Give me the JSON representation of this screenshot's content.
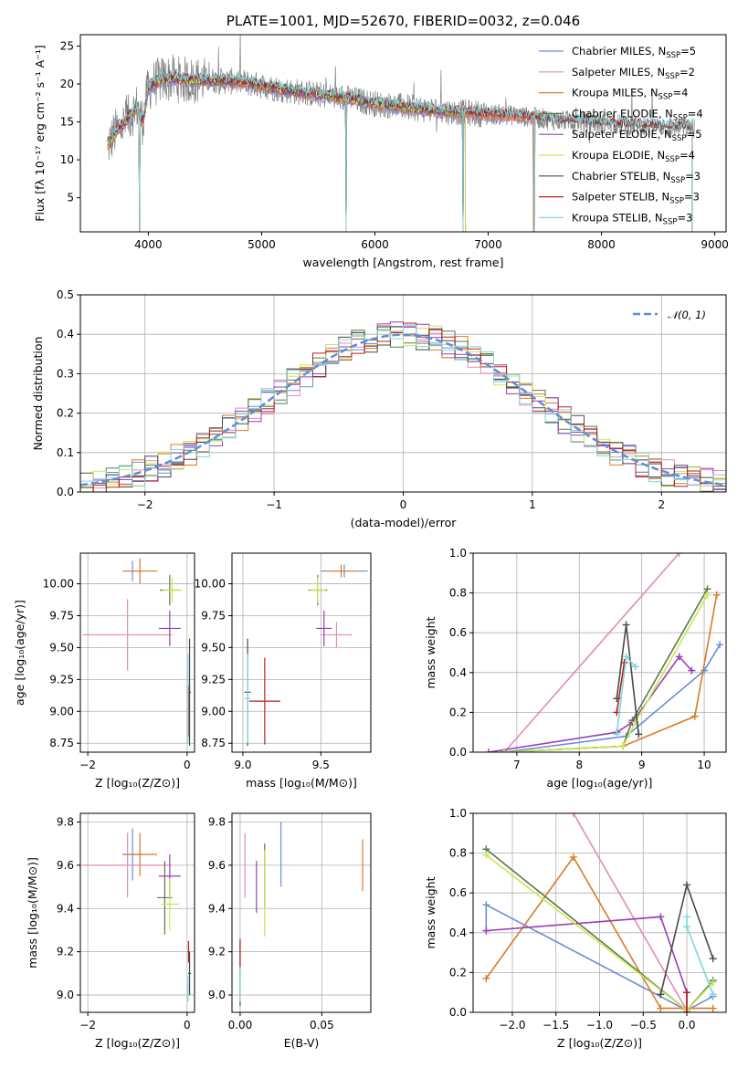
{
  "figure_title": "PLATE=1001, MJD=52670, FIBERID=0032, z=0.046",
  "colors": {
    "Chabrier MILES": "#6b8edb",
    "Salpeter MILES": "#e38abd",
    "Kroupa MILES": "#d97b27",
    "Chabrier ELODIE": "#5a7a50",
    "Salpeter ELODIE": "#9a3fb6",
    "Kroupa ELODIE": "#c8e84f",
    "Chabrier STELIB": "#4a4a4a",
    "Salpeter STELIB": "#b82020",
    "Kroupa STELIB": "#7fd6dc"
  },
  "chart_data": [
    {
      "id": "spectrum",
      "type": "line",
      "title": "PLATE=1001, MJD=52670, FIBERID=0032, z=0.046",
      "xlabel": "wavelength [Angstrom, rest frame]",
      "ylabel": "Flux [fλ 10⁻¹⁷ erg cm⁻² s⁻¹ A⁻¹]",
      "xlim": [
        3400,
        9100
      ],
      "ylim": [
        0.5,
        26.5
      ],
      "xticks": [
        "4000",
        "5000",
        "6000",
        "7000",
        "8000",
        "9000"
      ],
      "yticks": [
        "5",
        "10",
        "15",
        "20",
        "25"
      ],
      "grid": false,
      "legend_position": "top-right",
      "legend": [
        {
          "label": "Chabrier MILES, N",
          "sub": "SSP",
          "suffix": "=5"
        },
        {
          "label": "Salpeter MILES, N",
          "sub": "SSP",
          "suffix": "=2"
        },
        {
          "label": "Kroupa MILES, N",
          "sub": "SSP",
          "suffix": "=4"
        },
        {
          "label": "Chabrier ELODIE, N",
          "sub": "SSP",
          "suffix": "=4"
        },
        {
          "label": "Salpeter ELODIE, N",
          "sub": "SSP",
          "suffix": "=5"
        },
        {
          "label": "Kroupa ELODIE, N",
          "sub": "SSP",
          "suffix": "=4"
        },
        {
          "label": "Chabrier STELIB, N",
          "sub": "SSP",
          "suffix": "=3"
        },
        {
          "label": "Salpeter STELIB, N",
          "sub": "SSP",
          "suffix": "=3"
        },
        {
          "label": "Kroupa STELIB, N",
          "sub": "SSP",
          "suffix": "=3"
        }
      ],
      "model_continuum": {
        "x": [
          3650,
          3700,
          3800,
          3900,
          3950,
          4000,
          4100,
          4200,
          4300,
          4500,
          4800,
          5000,
          5200,
          5500,
          5800,
          6000,
          6300,
          6600,
          6800,
          7000,
          7200,
          7400,
          7600,
          7800,
          8000,
          8200,
          8500,
          8800
        ],
        "y": [
          12,
          13.5,
          15,
          17,
          15,
          19.5,
          20.5,
          20.8,
          20.5,
          20.5,
          20.3,
          19.8,
          19.2,
          18.6,
          18,
          17.4,
          16.9,
          16.4,
          16.2,
          16,
          15.9,
          15.6,
          15.2,
          15.1,
          14.8,
          14.6,
          14.4,
          14.2
        ]
      },
      "model_coverage_end": {
        "Chabrier MILES": 7400,
        "Salpeter MILES": 7400,
        "Kroupa MILES": 7400,
        "Chabrier ELODIE": 6800,
        "Salpeter ELODIE": 6800,
        "Kroupa ELODIE": 6800,
        "Chabrier STELIB": 8800,
        "Salpeter STELIB": 8800,
        "Kroupa STELIB": 8800
      },
      "sharp_drops_x": [
        3920,
        5745,
        6780,
        7410
      ]
    },
    {
      "id": "residuals",
      "type": "histogram",
      "xlabel": "(data-model)/error",
      "ylabel": "Normed distribution",
      "xlim": [
        -2.5,
        2.5
      ],
      "ylim": [
        0,
        0.5
      ],
      "xticks": [
        "−2",
        "−1",
        "0",
        "1",
        "2"
      ],
      "yticks": [
        "0.0",
        "0.1",
        "0.2",
        "0.3",
        "0.4",
        "0.5"
      ],
      "grid": true,
      "legend_position": "top-right",
      "legend": [
        "𝒩(0, 1)"
      ],
      "bin_width": 0.1
    },
    {
      "id": "age_vs_Z",
      "type": "errorbar",
      "xlabel": "Z [log₁₀(Z/Z⊙)]",
      "ylabel": "age  [log₁₀(age/yr)]",
      "xlim": [
        -2.15,
        0.15
      ],
      "ylim": [
        8.68,
        10.24
      ],
      "xticks": [
        "−2",
        "0"
      ],
      "yticks": [
        "8.75",
        "9.00",
        "9.25",
        "9.50",
        "9.75",
        "10.00"
      ],
      "grid": true,
      "points": [
        {
          "model": "Chabrier MILES",
          "x": -1.1,
          "y": 10.1,
          "xerr": 0.2,
          "yerr": 0.08
        },
        {
          "model": "Salpeter MILES",
          "x": -1.2,
          "y": 9.6,
          "xerr": 0.9,
          "yerr": 0.28
        },
        {
          "model": "Kroupa MILES",
          "x": -0.95,
          "y": 10.1,
          "xerr": 0.35,
          "yerr": 0.1
        },
        {
          "model": "Chabrier ELODIE",
          "x": -0.35,
          "y": 9.95,
          "xerr": 0.2,
          "yerr": 0.12
        },
        {
          "model": "Salpeter ELODIE",
          "x": -0.35,
          "y": 9.65,
          "xerr": 0.22,
          "yerr": 0.14
        },
        {
          "model": "Kroupa ELODIE",
          "x": -0.3,
          "y": 9.95,
          "xerr": 0.2,
          "yerr": 0.1
        },
        {
          "model": "Chabrier STELIB",
          "x": 0.05,
          "y": 9.15,
          "xerr": 0.03,
          "yerr": 0.42
        },
        {
          "model": "Salpeter STELIB",
          "x": 0.03,
          "y": 9.0,
          "xerr": 0.02,
          "yerr": 0.2
        },
        {
          "model": "Kroupa STELIB",
          "x": 0.02,
          "y": 9.1,
          "xerr": 0.02,
          "yerr": 0.35
        }
      ]
    },
    {
      "id": "age_vs_mass",
      "type": "errorbar",
      "xlabel": "mass [log₁₀(M/M⊙)]",
      "ylabel": "",
      "xlim": [
        8.93,
        9.82
      ],
      "ylim": [
        8.68,
        10.24
      ],
      "xticks": [
        "9.0",
        "9.5"
      ],
      "yticks": [
        "8.75",
        "9.00",
        "9.25",
        "9.50",
        "9.75",
        "10.00"
      ],
      "grid": true,
      "points": [
        {
          "model": "Chabrier MILES",
          "x": 9.65,
          "y": 10.1,
          "xerr": 0.15,
          "yerr": 0.05
        },
        {
          "model": "Salpeter MILES",
          "x": 9.6,
          "y": 9.6,
          "xerr": 0.1,
          "yerr": 0.1
        },
        {
          "model": "Kroupa MILES",
          "x": 9.63,
          "y": 10.1,
          "xerr": 0.1,
          "yerr": 0.05
        },
        {
          "model": "Chabrier ELODIE",
          "x": 9.48,
          "y": 9.95,
          "xerr": 0.06,
          "yerr": 0.12
        },
        {
          "model": "Salpeter ELODIE",
          "x": 9.52,
          "y": 9.65,
          "xerr": 0.05,
          "yerr": 0.14
        },
        {
          "model": "Kroupa ELODIE",
          "x": 9.48,
          "y": 9.95,
          "xerr": 0.05,
          "yerr": 0.1
        },
        {
          "model": "Chabrier STELIB",
          "x": 9.03,
          "y": 9.15,
          "xerr": 0.02,
          "yerr": 0.42
        },
        {
          "model": "Salpeter STELIB",
          "x": 9.14,
          "y": 9.08,
          "xerr": 0.1,
          "yerr": 0.34
        },
        {
          "model": "Kroupa STELIB",
          "x": 9.03,
          "y": 9.1,
          "xerr": 0.02,
          "yerr": 0.35
        }
      ]
    },
    {
      "id": "weight_vs_age",
      "type": "line",
      "xlabel": "age  [log₁₀(age/yr)]",
      "ylabel": "mass weight",
      "xlim": [
        6.3,
        10.35
      ],
      "ylim": [
        0,
        1
      ],
      "xticks": [
        "7",
        "8",
        "9",
        "10"
      ],
      "yticks": [
        "0.0",
        "0.2",
        "0.4",
        "0.6",
        "0.8",
        "1.0"
      ],
      "grid": true,
      "series": [
        {
          "name": "Chabrier MILES",
          "x": [
            6.8,
            8.75,
            10.0,
            10.25
          ],
          "y": [
            0.0,
            0.08,
            0.41,
            0.54
          ]
        },
        {
          "name": "Salpeter MILES",
          "x": [
            6.8,
            9.6
          ],
          "y": [
            0.0,
            1.0
          ]
        },
        {
          "name": "Kroupa MILES",
          "x": [
            6.8,
            8.7,
            9.85,
            10.2
          ],
          "y": [
            0.0,
            0.03,
            0.18,
            0.79
          ]
        },
        {
          "name": "Chabrier ELODIE",
          "x": [
            6.8,
            8.7,
            8.85,
            10.05
          ],
          "y": [
            0.0,
            0.03,
            0.16,
            0.82
          ]
        },
        {
          "name": "Salpeter ELODIE",
          "x": [
            6.55,
            8.6,
            8.85,
            9.6,
            9.8
          ],
          "y": [
            0.0,
            0.1,
            0.15,
            0.48,
            0.41
          ]
        },
        {
          "name": "Kroupa ELODIE",
          "x": [
            6.8,
            8.7,
            8.9,
            10.05
          ],
          "y": [
            0.0,
            0.03,
            0.15,
            0.79
          ]
        },
        {
          "name": "Chabrier STELIB",
          "x": [
            8.6,
            8.75,
            8.95
          ],
          "y": [
            0.27,
            0.64,
            0.09
          ]
        },
        {
          "name": "Salpeter STELIB",
          "x": [
            8.6,
            8.72
          ],
          "y": [
            0.2,
            0.45
          ]
        },
        {
          "name": "Kroupa STELIB",
          "x": [
            8.6,
            8.75,
            8.9
          ],
          "y": [
            0.09,
            0.48,
            0.43
          ]
        }
      ]
    },
    {
      "id": "mass_vs_Z",
      "type": "errorbar",
      "xlabel": "Z [log₁₀(Z/Z⊙)]",
      "ylabel": "mass [log₁₀(M/M⊙)]",
      "xlim": [
        -2.15,
        0.15
      ],
      "ylim": [
        8.92,
        9.84
      ],
      "xticks": [
        "−2",
        "0"
      ],
      "yticks": [
        "9.0",
        "9.2",
        "9.4",
        "9.6",
        "9.8"
      ],
      "grid": true,
      "points": [
        {
          "model": "Chabrier MILES",
          "x": -1.1,
          "y": 9.65,
          "xerr": 0.2,
          "yerr": 0.12
        },
        {
          "model": "Salpeter MILES",
          "x": -1.2,
          "y": 9.6,
          "xerr": 0.9,
          "yerr": 0.15
        },
        {
          "model": "Kroupa MILES",
          "x": -0.95,
          "y": 9.65,
          "xerr": 0.35,
          "yerr": 0.1
        },
        {
          "model": "Chabrier ELODIE",
          "x": -0.45,
          "y": 9.45,
          "xerr": 0.15,
          "yerr": 0.17
        },
        {
          "model": "Salpeter ELODIE",
          "x": -0.35,
          "y": 9.55,
          "xerr": 0.22,
          "yerr": 0.1
        },
        {
          "model": "Kroupa ELODIE",
          "x": -0.35,
          "y": 9.42,
          "xerr": 0.18,
          "yerr": 0.12
        },
        {
          "model": "Chabrier STELIB",
          "x": 0.05,
          "y": 9.1,
          "xerr": 0.03,
          "yerr": 0.1
        },
        {
          "model": "Salpeter STELIB",
          "x": 0.03,
          "y": 9.2,
          "xerr": 0.02,
          "yerr": 0.05
        },
        {
          "model": "Kroupa STELIB",
          "x": 0.02,
          "y": 9.03,
          "xerr": 0.02,
          "yerr": 0.06
        }
      ]
    },
    {
      "id": "mass_vs_ebv",
      "type": "errorbar",
      "xlabel": "E(B-V)",
      "ylabel": "",
      "xlim": [
        -0.005,
        0.08
      ],
      "ylim": [
        8.92,
        9.84
      ],
      "xticks": [
        "0.00",
        "0.05"
      ],
      "yticks": [
        "9.0",
        "9.2",
        "9.4",
        "9.6",
        "9.8"
      ],
      "grid": true,
      "points": [
        {
          "model": "Chabrier MILES",
          "x": 0.025,
          "y": 9.65,
          "xerr": 0,
          "yerr": 0.15
        },
        {
          "model": "Salpeter MILES",
          "x": 0.003,
          "y": 9.6,
          "xerr": 0,
          "yerr": 0.15
        },
        {
          "model": "Kroupa MILES",
          "x": 0.075,
          "y": 9.6,
          "xerr": 0,
          "yerr": 0.12
        },
        {
          "model": "Chabrier ELODIE",
          "x": 0.015,
          "y": 9.55,
          "xerr": 0,
          "yerr": 0.15
        },
        {
          "model": "Salpeter ELODIE",
          "x": 0.01,
          "y": 9.5,
          "xerr": 0,
          "yerr": 0.12
        },
        {
          "model": "Kroupa ELODIE",
          "x": 0.015,
          "y": 9.47,
          "xerr": 0,
          "yerr": 0.2
        },
        {
          "model": "Chabrier STELIB",
          "x": 0.0,
          "y": 9.1,
          "xerr": 0,
          "yerr": 0.15
        },
        {
          "model": "Salpeter STELIB",
          "x": 0.0,
          "y": 9.18,
          "xerr": 0,
          "yerr": 0.08
        },
        {
          "model": "Kroupa STELIB",
          "x": 0.0,
          "y": 9.05,
          "xerr": 0,
          "yerr": 0.08
        }
      ]
    },
    {
      "id": "weight_vs_Z",
      "type": "line",
      "xlabel": "Z [log₁₀(Z/Z⊙)]",
      "ylabel": "mass weight",
      "xlim": [
        -2.45,
        0.45
      ],
      "ylim": [
        0,
        1
      ],
      "xticks": [
        "−2.0",
        "−1.5",
        "−1.0",
        "−0.5",
        "0.0"
      ],
      "yticks": [
        "0.0",
        "0.2",
        "0.4",
        "0.6",
        "0.8",
        "1.0"
      ],
      "grid": true,
      "series": [
        {
          "name": "Chabrier MILES",
          "x": [
            -2.3,
            -2.3,
            0.0,
            0.3
          ],
          "y": [
            0.41,
            0.54,
            0.01,
            0.08
          ]
        },
        {
          "name": "Salpeter MILES",
          "x": [
            -1.3,
            0.0
          ],
          "y": [
            1.0,
            0.01
          ]
        },
        {
          "name": "Kroupa MILES",
          "x": [
            -2.3,
            -1.3,
            -0.3,
            0.3
          ],
          "y": [
            0.17,
            0.78,
            0.02,
            0.02
          ]
        },
        {
          "name": "Chabrier ELODIE",
          "x": [
            -2.3,
            0.0,
            0.3
          ],
          "y": [
            0.82,
            0.01,
            0.16
          ]
        },
        {
          "name": "Salpeter ELODIE",
          "x": [
            -2.3,
            -0.3,
            0.0,
            0.0
          ],
          "y": [
            0.41,
            0.48,
            0.1,
            0.0
          ]
        },
        {
          "name": "Kroupa ELODIE",
          "x": [
            -2.3,
            0.0,
            0.3
          ],
          "y": [
            0.79,
            0.01,
            0.15
          ]
        },
        {
          "name": "Chabrier STELIB",
          "x": [
            -0.3,
            0.0,
            0.3
          ],
          "y": [
            0.09,
            0.64,
            0.27
          ]
        },
        {
          "name": "Salpeter STELIB",
          "x": [
            0.0,
            0.0
          ],
          "y": [
            0.0,
            0.1
          ]
        },
        {
          "name": "Kroupa STELIB",
          "x": [
            0.0,
            0.0,
            0.3
          ],
          "y": [
            0.48,
            0.43,
            0.09
          ]
        }
      ]
    }
  ]
}
